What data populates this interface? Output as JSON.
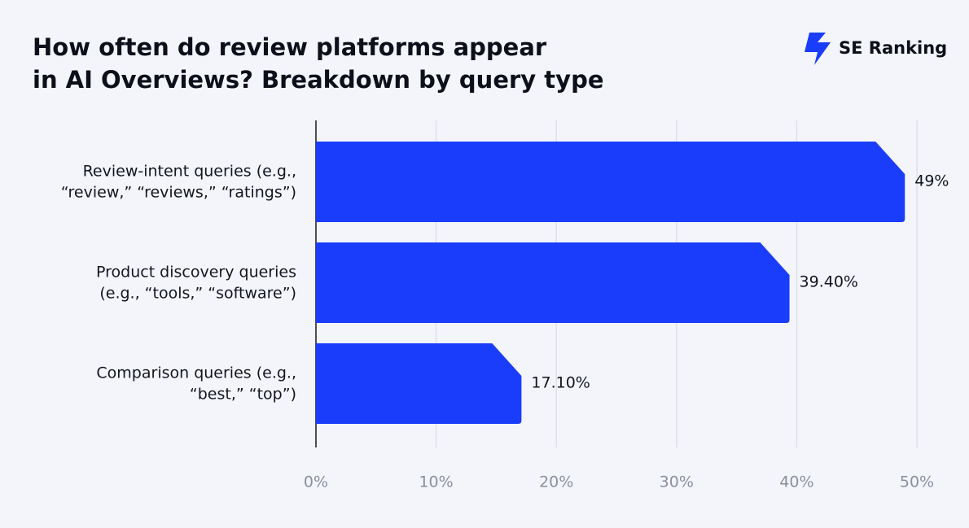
{
  "chart_data": {
    "type": "bar",
    "orientation": "horizontal",
    "title": [
      "How often do review platforms appear",
      "in AI Overviews? Breakdown by query type"
    ],
    "brand": "SE Ranking",
    "categories": [
      [
        "Review-intent queries (e.g.,",
        "“review,” “reviews,” “ratings”)"
      ],
      [
        "Product discovery queries",
        "(e.g., “tools,” “software”)"
      ],
      [
        "Comparison queries (e.g.,",
        "“best,” “top”)"
      ]
    ],
    "values": [
      49,
      39.4,
      17.1
    ],
    "value_labels": [
      "49%",
      "39.40%",
      "17.10%"
    ],
    "color": "#1a3dfb",
    "xlim": [
      0,
      50
    ],
    "xticks": [
      {
        "value": 0,
        "label": "0%"
      },
      {
        "value": 10,
        "label": "10%"
      },
      {
        "value": 20,
        "label": "20%"
      },
      {
        "value": 30,
        "label": "30%"
      },
      {
        "value": 40,
        "label": "40%"
      },
      {
        "value": 50,
        "label": "50%"
      }
    ],
    "grid": true
  }
}
